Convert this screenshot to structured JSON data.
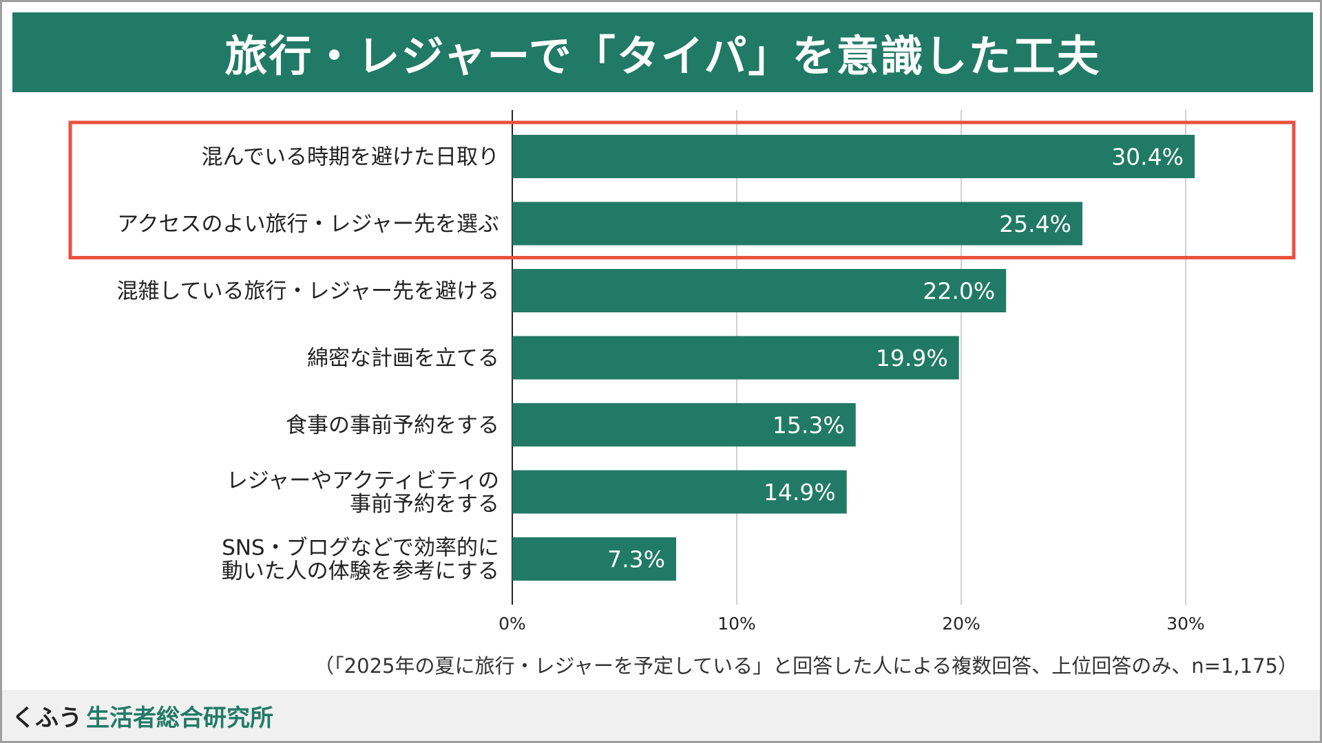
{
  "title": "旅行・レジャーで「タイパ」を意識した工夫",
  "note": "（「2025年の夏に旅行・レジャーを予定している」と回答した人による複数回答、上位回答のみ、n=1,175）",
  "brand": {
    "kana": "くふう",
    "name": "生活者総合研究所"
  },
  "colors": {
    "bar": "#217a66",
    "highlight": "#e8523f",
    "title_bg": "#217a66"
  },
  "chart_data": {
    "type": "bar",
    "orientation": "horizontal",
    "categories": [
      [
        "混んでいる時期を避けた日取り"
      ],
      [
        "アクセスのよい旅行・レジャー先を選ぶ"
      ],
      [
        "混雑している旅行・レジャー先を避ける"
      ],
      [
        "綿密な計画を立てる"
      ],
      [
        "食事の事前予約をする"
      ],
      [
        "レジャーやアクティビティの",
        "事前予約をする"
      ],
      [
        "SNS・ブログなどで効率的に",
        "動いた人の体験を参考にする"
      ]
    ],
    "values": [
      30.4,
      25.4,
      22.0,
      19.9,
      15.3,
      14.9,
      7.3
    ],
    "value_labels": [
      "30.4%",
      "25.4%",
      "22.0%",
      "19.9%",
      "15.3%",
      "14.9%",
      "7.3%"
    ],
    "xlim": [
      0,
      35
    ],
    "ticks": [
      0,
      10,
      20,
      30
    ],
    "tick_labels": [
      "0%",
      "10%",
      "20%",
      "30%"
    ],
    "grid": true,
    "highlighted_categories": [
      0,
      1
    ]
  }
}
